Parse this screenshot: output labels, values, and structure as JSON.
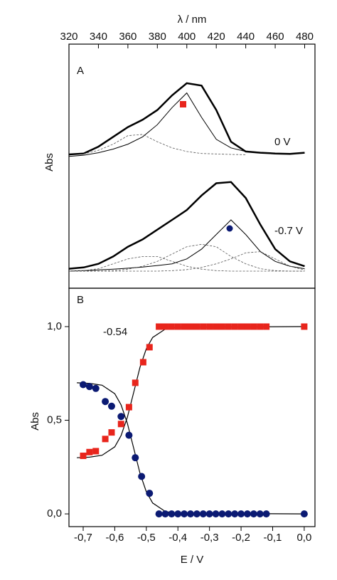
{
  "chart_data": [
    {
      "type": "line",
      "panel_label": "A",
      "xlabel": "λ / nm",
      "ylabel": "Abs",
      "xlim": [
        320,
        487
      ],
      "xticks": [
        320,
        340,
        360,
        380,
        400,
        420,
        440,
        460,
        480
      ],
      "ylim": [
        0,
        1
      ],
      "x": [
        320,
        330,
        340,
        350,
        360,
        370,
        380,
        390,
        400,
        410,
        420,
        430,
        440,
        450,
        460,
        470,
        480
      ],
      "series": [
        {
          "color": "#000000",
          "linewidth": 2.5,
          "dash": false,
          "values": [
            0.548,
            0.552,
            0.58,
            0.62,
            0.66,
            0.69,
            0.73,
            0.79,
            0.84,
            0.83,
            0.73,
            0.6,
            0.56,
            0.555,
            0.552,
            0.55,
            0.555
          ]
        },
        {
          "color": "#000000",
          "linewidth": 1,
          "dash": false,
          "values": [
            0.54,
            0.545,
            0.555,
            0.57,
            0.59,
            0.62,
            0.67,
            0.74,
            0.8,
            0.7,
            0.61,
            0.575,
            0.56,
            0.555,
            null,
            null,
            null
          ]
        },
        {
          "color": "#555555",
          "linewidth": 0.8,
          "dash": true,
          "values": [
            null,
            0.55,
            0.565,
            0.59,
            0.625,
            0.63,
            0.6,
            0.575,
            0.56,
            0.552,
            0.55,
            0.548,
            0.547,
            null,
            null,
            null,
            null
          ]
        },
        {
          "color": "#000000",
          "linewidth": 2.5,
          "dash": false,
          "values": [
            0.08,
            0.085,
            0.1,
            0.13,
            0.17,
            0.2,
            0.24,
            0.28,
            0.32,
            0.38,
            0.43,
            0.435,
            0.37,
            0.26,
            0.16,
            0.11,
            0.09
          ]
        },
        {
          "color": "#000000",
          "linewidth": 1,
          "dash": false,
          "values": [
            0.07,
            0.072,
            0.075,
            0.078,
            0.082,
            0.087,
            0.093,
            0.1,
            0.12,
            0.16,
            0.22,
            0.28,
            0.22,
            0.15,
            0.11,
            0.09,
            0.08
          ]
        },
        {
          "color": "#555555",
          "linewidth": 0.8,
          "dash": true,
          "values": [
            0.07,
            0.072,
            0.08,
            0.1,
            0.12,
            0.13,
            0.13,
            0.11,
            0.09,
            0.078,
            0.072,
            0.07,
            0.07,
            0.07,
            0.07,
            0.07,
            0.07
          ]
        },
        {
          "color": "#555555",
          "linewidth": 0.8,
          "dash": true,
          "values": [
            0.07,
            0.07,
            0.07,
            0.072,
            0.078,
            0.09,
            0.11,
            0.14,
            0.17,
            0.18,
            0.17,
            0.13,
            0.1,
            0.08,
            0.072,
            0.07,
            0.07
          ]
        },
        {
          "color": "#555555",
          "linewidth": 0.8,
          "dash": true,
          "values": [
            0.07,
            0.07,
            0.07,
            0.07,
            0.07,
            0.07,
            0.07,
            0.072,
            0.076,
            0.085,
            0.1,
            0.12,
            0.145,
            0.15,
            0.12,
            0.09,
            0.075
          ]
        }
      ],
      "annotations": [
        "0 V",
        "-0.7 V"
      ]
    },
    {
      "type": "scatter",
      "panel_label": "B",
      "xlabel": "E / V",
      "ylabel": "Abs",
      "annotation": "-0.54",
      "xlim": [
        -0.745,
        0.034
      ],
      "ylim": [
        -0.068,
        1.205
      ],
      "xticks": [
        {
          "value": -0.7,
          "label": "-0,7"
        },
        {
          "value": -0.6,
          "label": "-0,6"
        },
        {
          "value": -0.5,
          "label": "-0,5"
        },
        {
          "value": -0.4,
          "label": "-0,4"
        },
        {
          "value": -0.3,
          "label": "-0,3"
        },
        {
          "value": -0.2,
          "label": "-0,2"
        },
        {
          "value": -0.1,
          "label": "-0,1"
        },
        {
          "value": 0,
          "label": "0,0"
        }
      ],
      "yticks": [
        {
          "value": 0,
          "label": "0,0"
        },
        {
          "value": 0.5,
          "label": "0,5"
        },
        {
          "value": 1,
          "label": "1,0"
        }
      ],
      "series": [
        {
          "kind": "line",
          "color": "#000000",
          "x": [
            -0.72,
            -0.68,
            -0.64,
            -0.6,
            -0.58,
            -0.56,
            -0.54,
            -0.52,
            -0.5,
            -0.48,
            -0.44,
            -0.4,
            0
          ],
          "values": [
            0.3,
            0.303,
            0.313,
            0.358,
            0.418,
            0.517,
            0.65,
            0.783,
            0.882,
            0.942,
            0.987,
            0.997,
            1
          ]
        },
        {
          "kind": "line",
          "color": "#000000",
          "x": [
            -0.72,
            -0.68,
            -0.64,
            -0.6,
            -0.58,
            -0.56,
            -0.54,
            -0.52,
            -0.5,
            -0.48,
            -0.44,
            -0.4,
            0
          ],
          "values": [
            0.7,
            0.697,
            0.687,
            0.642,
            0.582,
            0.483,
            0.35,
            0.217,
            0.118,
            0.058,
            0.013,
            0.003,
            0
          ]
        },
        {
          "kind": "marker",
          "marker": "square",
          "color": "#e8251c",
          "x": [
            -0.7,
            -0.68,
            -0.66,
            -0.63,
            -0.61,
            -0.58,
            -0.555,
            -0.535,
            -0.51,
            -0.49,
            -0.46,
            -0.44,
            -0.42,
            -0.4,
            -0.38,
            -0.36,
            -0.34,
            -0.32,
            -0.3,
            -0.28,
            -0.26,
            -0.24,
            -0.22,
            -0.2,
            -0.18,
            -0.16,
            -0.14,
            -0.12,
            0
          ],
          "values": [
            0.31,
            0.33,
            0.335,
            0.4,
            0.435,
            0.48,
            0.57,
            0.7,
            0.81,
            0.89,
            1,
            1,
            1,
            1,
            1,
            1,
            1,
            1,
            1,
            1,
            1,
            1,
            1,
            1,
            1,
            1,
            1,
            1,
            1
          ]
        },
        {
          "kind": "marker",
          "marker": "circle",
          "color": "#0b1a73",
          "x": [
            -0.7,
            -0.68,
            -0.66,
            -0.63,
            -0.61,
            -0.58,
            -0.555,
            -0.535,
            -0.515,
            -0.49,
            -0.46,
            -0.44,
            -0.42,
            -0.4,
            -0.38,
            -0.36,
            -0.34,
            -0.32,
            -0.3,
            -0.28,
            -0.26,
            -0.24,
            -0.22,
            -0.2,
            -0.18,
            -0.16,
            -0.14,
            -0.12,
            0
          ],
          "values": [
            0.69,
            0.68,
            0.67,
            0.6,
            0.575,
            0.52,
            0.42,
            0.3,
            0.2,
            0.11,
            0,
            0,
            0,
            0,
            0,
            0,
            0,
            0,
            0,
            0,
            0,
            0,
            0,
            0,
            0,
            0,
            0,
            0,
            0
          ]
        }
      ]
    }
  ]
}
